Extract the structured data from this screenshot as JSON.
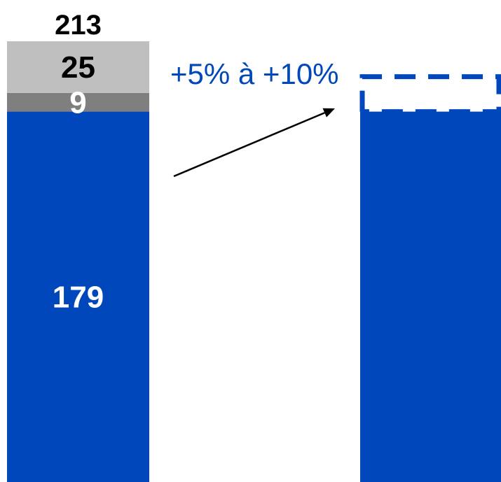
{
  "chart_data": {
    "type": "bar",
    "stacked": true,
    "title": "",
    "xlabel": "",
    "ylabel": "",
    "categories": [
      "",
      ""
    ],
    "stacks": [
      {
        "total_label": "213",
        "segments": [
          {
            "value": 179,
            "label": "179",
            "color": "#0047BB",
            "label_color": "#ffffff"
          },
          {
            "value": 9,
            "label": "9",
            "color": "#7F7F7F",
            "label_color": "#ffffff"
          },
          {
            "value": 25,
            "label": "25",
            "color": "#BFBFBF",
            "label_color": "#000000"
          }
        ]
      },
      {
        "segments": [
          {
            "value": 179,
            "color": "#0047BB"
          }
        ],
        "projection": {
          "style": "dashed",
          "color": "#0047BB",
          "low_pct": 5,
          "high_pct": 10
        }
      }
    ],
    "annotation": {
      "text": "+5% à +10%",
      "color": "#0047BB"
    },
    "grid": false,
    "legend": "none"
  }
}
